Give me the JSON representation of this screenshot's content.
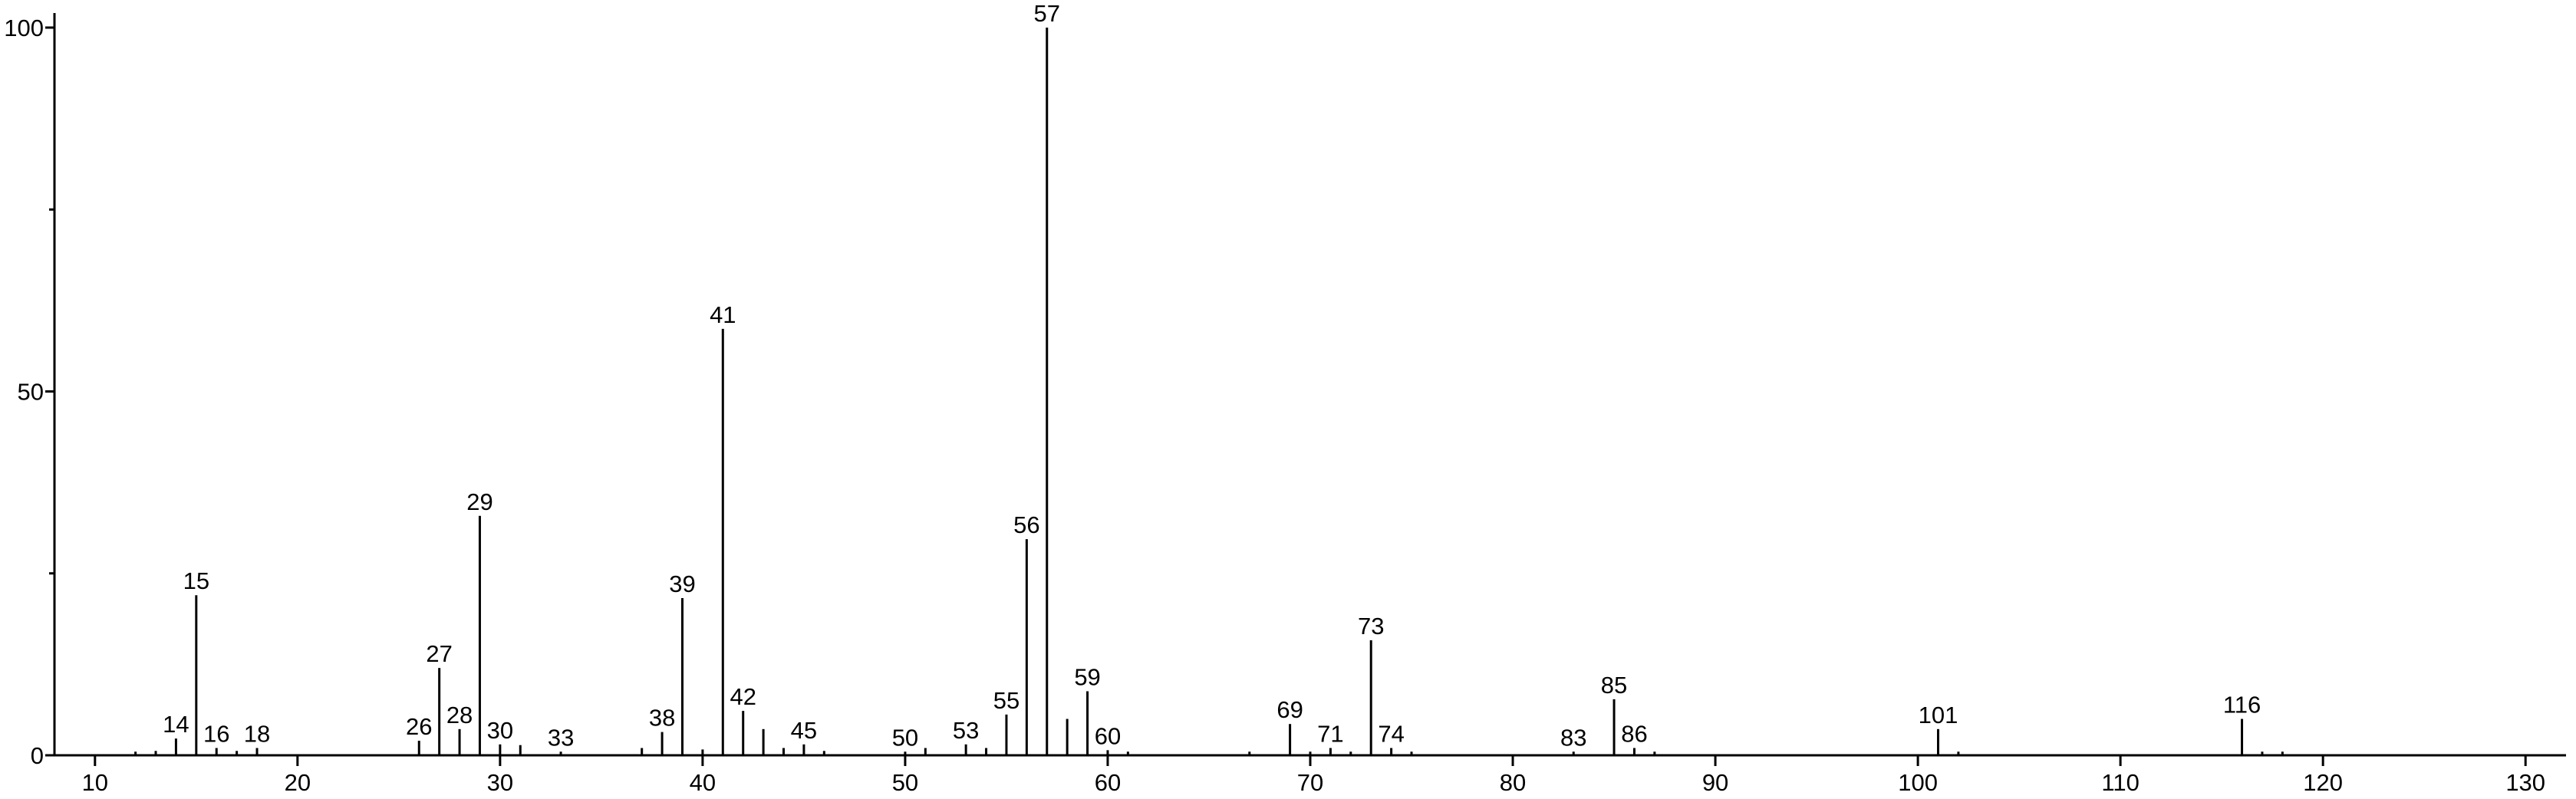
{
  "chart_data": {
    "type": "stem",
    "x": [
      12,
      13,
      14,
      15,
      16,
      17,
      18,
      26,
      27,
      28,
      29,
      30,
      31,
      33,
      37,
      38,
      39,
      40,
      41,
      42,
      43,
      44,
      45,
      46,
      50,
      51,
      53,
      54,
      55,
      56,
      57,
      58,
      59,
      60,
      61,
      67,
      69,
      70,
      71,
      72,
      73,
      74,
      75,
      83,
      85,
      86,
      87,
      101,
      102,
      116,
      117,
      118
    ],
    "values": [
      0.5,
      0.6,
      2.3,
      22,
      1,
      0.6,
      1,
      2,
      12,
      3.6,
      32.9,
      1.5,
      1.4,
      0.5,
      1,
      3.2,
      21.6,
      0.8,
      58.6,
      6.1,
      3.6,
      1,
      1.5,
      0.6,
      0.5,
      1,
      1.5,
      1,
      5.6,
      29.7,
      100,
      5,
      8.8,
      0.7,
      0.5,
      0.5,
      4.3,
      0.5,
      1,
      0.5,
      15.8,
      1,
      0.5,
      0.5,
      7.7,
      1,
      0.5,
      3.6,
      0.5,
      5,
      0.5,
      0.5
    ],
    "x_labels": [
      null,
      null,
      "14",
      "15",
      "16",
      null,
      "18",
      "26",
      "27",
      "28",
      "29",
      "30",
      null,
      "33",
      null,
      "38",
      "39",
      null,
      "41",
      "42",
      null,
      null,
      "45",
      null,
      "50",
      null,
      "53",
      null,
      "55",
      "56",
      "57",
      null,
      "59",
      "60",
      null,
      null,
      "69",
      null,
      "71",
      null,
      "73",
      "74",
      null,
      "83",
      "85",
      "86",
      null,
      "101",
      null,
      "116",
      null,
      null
    ],
    "color": "#000000",
    "xlim": [
      8,
      132
    ],
    "xticks": [
      10,
      20,
      30,
      40,
      50,
      60,
      70,
      80,
      90,
      100,
      110,
      120,
      130
    ],
    "ylim": [
      0,
      102
    ],
    "yticks": [
      0,
      50,
      100
    ],
    "yminorticks": [
      25,
      75
    ]
  }
}
